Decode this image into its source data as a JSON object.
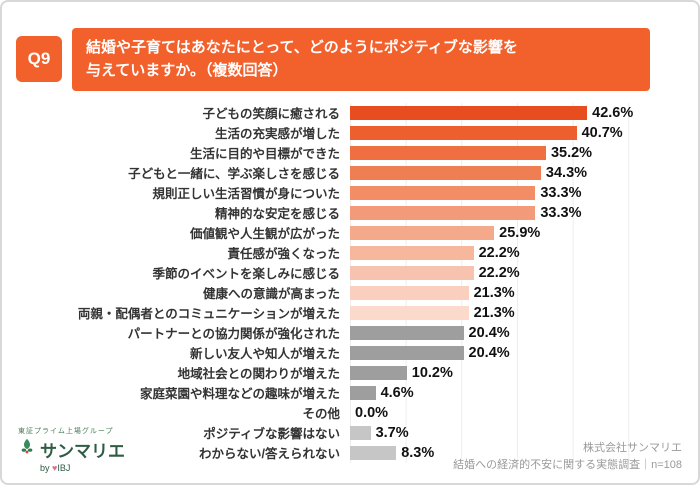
{
  "panel": {
    "q_label": "Q9"
  },
  "header": {
    "title_lines": [
      "結婚や子育てはあなたにとって、どのようにポジティブな影響を",
      "与えていますか。（複数回答）"
    ]
  },
  "chart_data": {
    "type": "bar",
    "orientation": "horizontal",
    "unit": "%",
    "xlim": [
      0,
      60
    ],
    "gridline_interval": 10,
    "legend": "none",
    "categories": [
      "子どもの笑顔に癒される",
      "生活の充実感が増した",
      "生活に目的や目標ができた",
      "子どもと一緒に、学ぶ楽しさを感じる",
      "規則正しい生活習慣が身についた",
      "精神的な安定を感じる",
      "価値観や人生観が広がった",
      "責任感が強くなった",
      "季節のイベントを楽しみに感じる",
      "健康への意識が高まった",
      "両親・配偶者とのコミュニケーションが増えた",
      "パートナーとの協力関係が強化された",
      "新しい友人や知人が増えた",
      "地域社会との関わりが増えた",
      "家庭菜園や料理などの趣味が増えた",
      "その他",
      "ポジティブな影響はない",
      "わからない/答えられない"
    ],
    "values": [
      42.6,
      40.7,
      35.2,
      34.3,
      33.3,
      33.3,
      25.9,
      22.2,
      22.2,
      21.3,
      21.3,
      20.4,
      20.4,
      10.2,
      4.6,
      0.0,
      3.7,
      8.3
    ],
    "value_labels": [
      "42.6%",
      "40.7%",
      "35.2%",
      "34.3%",
      "33.3%",
      "33.3%",
      "25.9%",
      "22.2%",
      "22.2%",
      "21.3%",
      "21.3%",
      "20.4%",
      "20.4%",
      "10.2%",
      "4.6%",
      "0.0%",
      "3.7%",
      "8.3%"
    ],
    "bar_colors": [
      "#E84D1F",
      "#EC5F2E",
      "#EF6F41",
      "#F07E53",
      "#F28D66",
      "#F39B78",
      "#F5A98B",
      "#F7B79D",
      "#F8C3AE",
      "#FACFBE",
      "#FBDACB",
      "#9E9E9E",
      "#9E9E9E",
      "#9E9E9E",
      "#9E9E9E",
      "transparent",
      "#C6C6C6",
      "#C6C6C6"
    ]
  },
  "footer": {
    "logo": {
      "tagline": "東証プライム上場グループ",
      "brand": "サンマリエ",
      "byline_prefix": "by",
      "group": "IBJ"
    },
    "source_lines": [
      "株式会社サンマリエ",
      "結婚への経済的不安に関する実態調査｜n=108"
    ]
  },
  "colors": {
    "accent_orange": "#F2602C",
    "gray_bar": "#9E9E9E",
    "light_gray_bar": "#C6C6C6"
  }
}
